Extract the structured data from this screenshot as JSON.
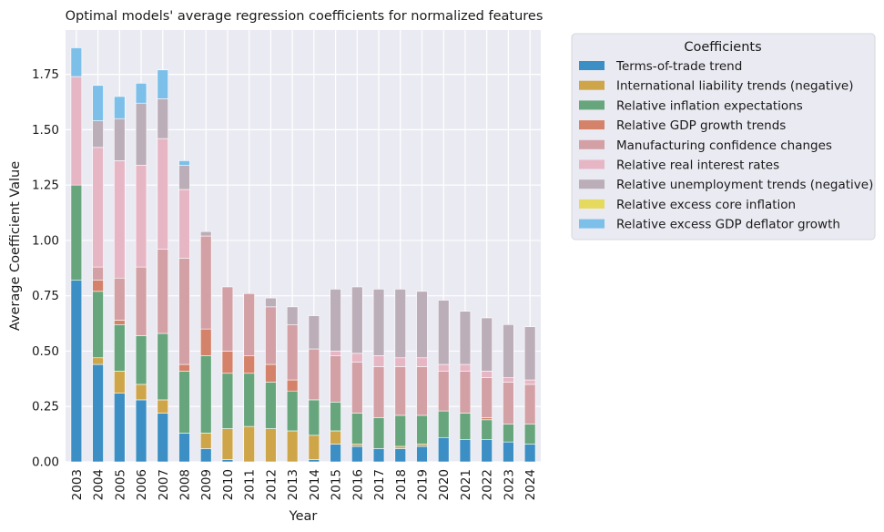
{
  "chart_data": {
    "type": "bar",
    "stacked": true,
    "title": "Optimal models' average regression coefficients for normalized features",
    "xlabel": "Year",
    "ylabel": "Average Coefficient Value",
    "ylim": [
      0,
      1.95
    ],
    "yticks": [
      "0.00",
      "0.25",
      "0.50",
      "0.75",
      "1.00",
      "1.25",
      "1.50",
      "1.75"
    ],
    "grid": true,
    "legend_position": "right",
    "legend_title": "Coefficients",
    "categories": [
      "2003",
      "2004",
      "2005",
      "2006",
      "2007",
      "2008",
      "2009",
      "2010",
      "2011",
      "2012",
      "2013",
      "2014",
      "2015",
      "2016",
      "2017",
      "2018",
      "2019",
      "2020",
      "2021",
      "2022",
      "2023",
      "2024"
    ],
    "series": [
      {
        "name": "Terms-of-trade trend",
        "color": "#3b8fc4",
        "values": [
          0.82,
          0.44,
          0.31,
          0.28,
          0.22,
          0.13,
          0.06,
          0.01,
          0,
          0,
          0,
          0.01,
          0.08,
          0.07,
          0.06,
          0.06,
          0.07,
          0.11,
          0.1,
          0.1,
          0.09,
          0.08
        ]
      },
      {
        "name": "International liability trends (negative)",
        "color": "#cfa54a",
        "values": [
          0,
          0.03,
          0.1,
          0.07,
          0.06,
          0,
          0.07,
          0.14,
          0.16,
          0.15,
          0.14,
          0.11,
          0.06,
          0.01,
          0,
          0.01,
          0.01,
          0,
          0,
          0,
          0,
          0
        ]
      },
      {
        "name": "Relative inflation expectations",
        "color": "#67a57d",
        "values": [
          0.43,
          0.3,
          0.21,
          0.22,
          0.3,
          0.28,
          0.35,
          0.25,
          0.24,
          0.21,
          0.18,
          0.16,
          0.13,
          0.14,
          0.14,
          0.14,
          0.13,
          0.12,
          0.12,
          0.09,
          0.08,
          0.09
        ]
      },
      {
        "name": "Relative GDP growth trends",
        "color": "#d4826a",
        "values": [
          0,
          0.05,
          0.02,
          0,
          0,
          0.03,
          0.12,
          0.1,
          0.08,
          0.08,
          0.05,
          0,
          0,
          0,
          0,
          0,
          0,
          0,
          0,
          0.01,
          0,
          0
        ]
      },
      {
        "name": "Manufacturing confidence changes",
        "color": "#d3a0a5",
        "values": [
          0,
          0.06,
          0.19,
          0.31,
          0.38,
          0.48,
          0.42,
          0.29,
          0.28,
          0.26,
          0.25,
          0.23,
          0.21,
          0.23,
          0.23,
          0.22,
          0.22,
          0.18,
          0.19,
          0.18,
          0.19,
          0.18
        ]
      },
      {
        "name": "Relative real interest rates",
        "color": "#e7b6c5",
        "values": [
          0.49,
          0.54,
          0.53,
          0.46,
          0.5,
          0.31,
          0,
          0,
          0,
          0,
          0,
          0,
          0.02,
          0.04,
          0.05,
          0.04,
          0.04,
          0.03,
          0.03,
          0.03,
          0.02,
          0.02
        ]
      },
      {
        "name": "Relative unemployment trends (negative)",
        "color": "#bcaeb9",
        "values": [
          0,
          0.12,
          0.19,
          0.28,
          0.18,
          0.11,
          0.02,
          0,
          0,
          0.04,
          0.08,
          0.15,
          0.28,
          0.3,
          0.3,
          0.31,
          0.3,
          0.29,
          0.24,
          0.24,
          0.24,
          0.24
        ]
      },
      {
        "name": "Relative excess core inflation",
        "color": "#e6da5e",
        "values": [
          0,
          0,
          0,
          0,
          0,
          0,
          0,
          0,
          0,
          0,
          0,
          0,
          0,
          0,
          0,
          0,
          0,
          0,
          0,
          0,
          0,
          0
        ]
      },
      {
        "name": "Relative excess GDP deflator growth",
        "color": "#7cc0ea",
        "values": [
          0.13,
          0.16,
          0.1,
          0.09,
          0.13,
          0.02,
          0,
          0,
          0,
          0,
          0,
          0,
          0,
          0,
          0,
          0,
          0,
          0,
          0,
          0,
          0,
          0
        ]
      }
    ]
  }
}
